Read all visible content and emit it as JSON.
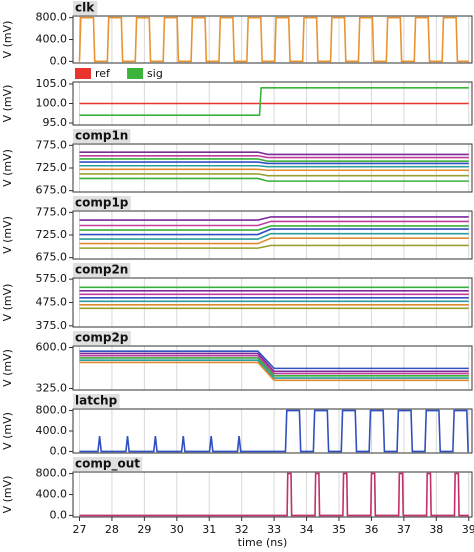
{
  "chart_data": [
    {
      "type": "line",
      "title": "clk",
      "ylabel": "V (mV)",
      "xlim": [
        26.8,
        39.1
      ],
      "ylim": [
        -30,
        830
      ],
      "yticks": [
        {
          "value": 0,
          "label": "0.0"
        },
        {
          "value": 400,
          "label": "400.0"
        },
        {
          "value": 800,
          "label": "800.0"
        }
      ],
      "series": [
        {
          "color": "#e8932f",
          "x": [
            27.0,
            27.04,
            27.43,
            27.47,
            27.86,
            27.9,
            28.29,
            28.33,
            28.72,
            28.76,
            29.15,
            29.19,
            29.58,
            29.62,
            30.01,
            30.05,
            30.44,
            30.48,
            30.87,
            30.91,
            31.3,
            31.34,
            31.73,
            31.77,
            32.16,
            32.2,
            32.59,
            32.63,
            33.02,
            33.06,
            33.45,
            33.49,
            33.88,
            33.92,
            34.31,
            34.35,
            34.74,
            34.78,
            35.17,
            35.21,
            35.6,
            35.64,
            36.03,
            36.07,
            36.46,
            36.5,
            36.89,
            36.93,
            37.32,
            37.36,
            37.75,
            37.79,
            38.18,
            38.22,
            38.61,
            38.65,
            39.0
          ],
          "values": [
            0,
            800,
            800,
            0,
            0,
            800,
            800,
            0,
            0,
            800,
            800,
            0,
            0,
            800,
            800,
            0,
            0,
            800,
            800,
            0,
            0,
            800,
            800,
            0,
            0,
            800,
            800,
            0,
            0,
            800,
            800,
            0,
            0,
            800,
            800,
            0,
            0,
            800,
            800,
            0,
            0,
            800,
            800,
            0,
            0,
            800,
            800,
            0,
            0,
            800,
            800,
            0,
            0,
            800,
            800,
            0,
            0
          ]
        }
      ]
    },
    {
      "type": "line",
      "ylabel": "V (mV)",
      "xlim": [
        26.8,
        39.1
      ],
      "ylim": [
        94.5,
        105.5
      ],
      "yticks": [
        {
          "value": 95,
          "label": "95.0"
        },
        {
          "value": 100,
          "label": "100.0"
        },
        {
          "value": 105,
          "label": "105.0"
        }
      ],
      "series": [
        {
          "name": "ref",
          "color": "#e8342c",
          "x": [
            27,
            39
          ],
          "values": [
            100,
            100
          ]
        },
        {
          "name": "sig",
          "color": "#3cb43c",
          "x": [
            27,
            32.55,
            32.6,
            39
          ],
          "values": [
            97,
            97,
            104,
            104
          ]
        }
      ]
    },
    {
      "type": "line",
      "title": "comp1n",
      "ylabel": "V (mV)",
      "xlim": [
        26.8,
        39.1
      ],
      "ylim": [
        672,
        778
      ],
      "yticks": [
        {
          "value": 675,
          "label": "675.0"
        },
        {
          "value": 725,
          "label": "725.0"
        },
        {
          "value": 775,
          "label": "775.0"
        }
      ],
      "x": [
        27,
        32.5,
        32.8,
        39
      ],
      "series": [
        {
          "color": "#7b2a9b",
          "values": [
            760,
            760,
            755,
            755
          ]
        },
        {
          "color": "#c03ca0",
          "values": [
            752,
            752,
            748,
            748
          ]
        },
        {
          "color": "#3cae3c",
          "values": [
            745,
            745,
            740,
            740
          ]
        },
        {
          "color": "#3050c0",
          "values": [
            738,
            738,
            735,
            735
          ]
        },
        {
          "color": "#2a9d9d",
          "values": [
            730,
            730,
            728,
            728
          ]
        },
        {
          "color": "#e08a30",
          "values": [
            722,
            722,
            720,
            720
          ]
        },
        {
          "color": "#9aa030",
          "values": [
            712,
            712,
            708,
            708
          ]
        },
        {
          "color": "#3cae3c",
          "values": [
            702,
            702,
            696,
            696
          ]
        }
      ]
    },
    {
      "type": "line",
      "title": "comp1p",
      "ylabel": "V (mV)",
      "xlim": [
        26.8,
        39.1
      ],
      "ylim": [
        672,
        778
      ],
      "yticks": [
        {
          "value": 675,
          "label": "675.0"
        },
        {
          "value": 725,
          "label": "725.0"
        },
        {
          "value": 775,
          "label": "775.0"
        }
      ],
      "x": [
        27,
        32.5,
        32.9,
        39
      ],
      "series": [
        {
          "color": "#7b2a9b",
          "values": [
            758,
            758,
            765,
            765
          ]
        },
        {
          "color": "#c03ca0",
          "values": [
            746,
            746,
            755,
            755
          ]
        },
        {
          "color": "#3cae3c",
          "values": [
            736,
            736,
            745,
            745
          ]
        },
        {
          "color": "#3050c0",
          "values": [
            726,
            726,
            738,
            738
          ]
        },
        {
          "color": "#2a9d9d",
          "values": [
            716,
            716,
            728,
            728
          ]
        },
        {
          "color": "#e08a30",
          "values": [
            706,
            706,
            718,
            718
          ]
        },
        {
          "color": "#9aa030",
          "values": [
            696,
            696,
            702,
            702
          ]
        }
      ]
    },
    {
      "type": "line",
      "title": "comp2n",
      "ylabel": "V (mV)",
      "xlim": [
        26.8,
        39.1
      ],
      "ylim": [
        370,
        580
      ],
      "yticks": [
        {
          "value": 375,
          "label": "375.0"
        },
        {
          "value": 475,
          "label": "475.0"
        },
        {
          "value": 575,
          "label": "575.0"
        }
      ],
      "x": [
        27,
        39
      ],
      "series": [
        {
          "color": "#3cae3c",
          "values": [
            540,
            540
          ]
        },
        {
          "color": "#7b2a9b",
          "values": [
            525,
            525
          ]
        },
        {
          "color": "#c03ca0",
          "values": [
            510,
            510
          ]
        },
        {
          "color": "#3050c0",
          "values": [
            495,
            495
          ]
        },
        {
          "color": "#2a9d9d",
          "values": [
            480,
            480
          ]
        },
        {
          "color": "#e08a30",
          "values": [
            465,
            465
          ]
        },
        {
          "color": "#9aa030",
          "values": [
            450,
            450
          ]
        }
      ]
    },
    {
      "type": "line",
      "title": "comp2p",
      "ylabel": "V (mV)",
      "xlim": [
        26.8,
        39.1
      ],
      "ylim": [
        315,
        610
      ],
      "yticks": [
        {
          "value": 325,
          "label": "325.0"
        },
        {
          "value": 600,
          "label": "600.0"
        }
      ],
      "x": [
        27,
        32.5,
        33.0,
        39
      ],
      "series": [
        {
          "color": "#3050c0",
          "values": [
            575,
            575,
            460,
            460
          ]
        },
        {
          "color": "#7b2a9b",
          "values": [
            560,
            560,
            440,
            440
          ]
        },
        {
          "color": "#c03ca0",
          "values": [
            545,
            545,
            425,
            425
          ]
        },
        {
          "color": "#3cae3c",
          "values": [
            530,
            530,
            410,
            410
          ]
        },
        {
          "color": "#2a9d9d",
          "values": [
            515,
            515,
            395,
            395
          ]
        },
        {
          "color": "#e08a30",
          "values": [
            500,
            500,
            380,
            380
          ]
        }
      ]
    },
    {
      "type": "line",
      "title": "latchp",
      "ylabel": "V (mV)",
      "xlim": [
        26.8,
        39.1
      ],
      "ylim": [
        -30,
        830
      ],
      "yticks": [
        {
          "value": 0,
          "label": "0.0"
        },
        {
          "value": 400,
          "label": "400.0"
        },
        {
          "value": 800,
          "label": "800.0"
        }
      ],
      "series": [
        {
          "color": "#3050c0",
          "x": [
            27,
            27.57,
            27.62,
            27.67,
            28.43,
            28.48,
            28.53,
            29.29,
            29.34,
            29.39,
            30.15,
            30.2,
            30.25,
            31.01,
            31.06,
            31.11,
            31.87,
            31.92,
            31.97,
            33.35,
            33.39,
            33.78,
            33.82,
            34.21,
            34.25,
            34.64,
            34.68,
            35.07,
            35.11,
            35.5,
            35.54,
            35.93,
            35.97,
            36.36,
            36.4,
            36.79,
            36.83,
            37.22,
            37.26,
            37.65,
            37.69,
            38.08,
            38.12,
            38.51,
            38.55,
            38.94,
            38.98,
            39
          ],
          "values": [
            0,
            0,
            300,
            0,
            0,
            300,
            0,
            0,
            300,
            0,
            0,
            300,
            0,
            0,
            300,
            0,
            0,
            300,
            0,
            0,
            800,
            800,
            0,
            0,
            800,
            800,
            0,
            0,
            800,
            800,
            0,
            0,
            800,
            800,
            0,
            0,
            800,
            800,
            0,
            0,
            800,
            800,
            0,
            0,
            800,
            800,
            0,
            0
          ]
        }
      ]
    },
    {
      "type": "line",
      "title": "comp_out",
      "ylabel": "V (mV)",
      "xlim": [
        26.8,
        39.1
      ],
      "ylim": [
        -30,
        830
      ],
      "yticks": [
        {
          "value": 0,
          "label": "0.0"
        },
        {
          "value": 400,
          "label": "400.0"
        },
        {
          "value": 800,
          "label": "800.0"
        }
      ],
      "xlabel": "time (ns)",
      "xticks": [
        27,
        28,
        29,
        30,
        31,
        32,
        33,
        34,
        35,
        36,
        37,
        38,
        39
      ],
      "series": [
        {
          "color": "#c0306a",
          "x": [
            27,
            33.4,
            33.42,
            33.52,
            33.54,
            34.26,
            34.28,
            34.38,
            34.4,
            35.12,
            35.14,
            35.24,
            35.26,
            35.98,
            36.0,
            36.1,
            36.12,
            36.84,
            36.86,
            36.96,
            36.98,
            37.7,
            37.72,
            37.82,
            37.84,
            38.56,
            38.58,
            38.68,
            38.7,
            39
          ],
          "values": [
            0,
            0,
            800,
            800,
            0,
            0,
            800,
            800,
            0,
            0,
            800,
            800,
            0,
            0,
            800,
            800,
            0,
            0,
            800,
            800,
            0,
            0,
            800,
            800,
            0,
            0,
            800,
            800,
            0,
            0
          ]
        }
      ]
    }
  ]
}
